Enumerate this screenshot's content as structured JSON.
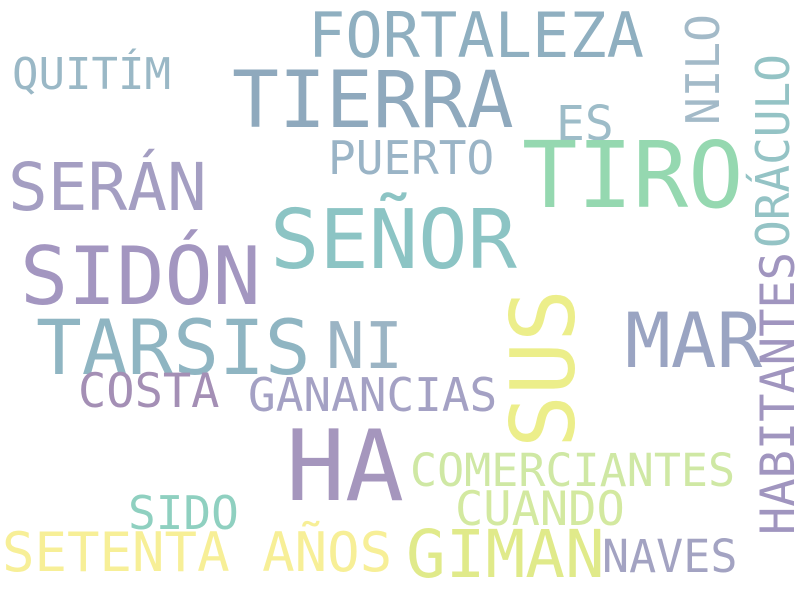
{
  "words": [
    {
      "text": "FORTALEZA",
      "color": "#8fafc0"
    },
    {
      "text": "NILO",
      "color": "#a3bac8"
    },
    {
      "text": "QUITÍM",
      "color": "#9ab8c6"
    },
    {
      "text": "TIERRA",
      "color": "#8fa9bd"
    },
    {
      "text": "ES",
      "color": "#9dbcc8"
    },
    {
      "text": "ORÁCULO",
      "color": "#94c3c5"
    },
    {
      "text": "PUERTO",
      "color": "#9ab4c6"
    },
    {
      "text": "TIRO",
      "color": "#95d8b0"
    },
    {
      "text": "SERÁN",
      "color": "#a49ec2"
    },
    {
      "text": "SEÑOR",
      "color": "#8cc4c4"
    },
    {
      "text": "SIDÓN",
      "color": "#a396c0"
    },
    {
      "text": "HABITANTES",
      "color": "#a095bf"
    },
    {
      "text": "SUS",
      "color": "#ecee8a"
    },
    {
      "text": "MAR",
      "color": "#9aa4c2"
    },
    {
      "text": "TARSIS",
      "color": "#8fb5c2"
    },
    {
      "text": "NI",
      "color": "#9bb4c4"
    },
    {
      "text": "COSTA",
      "color": "#a48fb5"
    },
    {
      "text": "GANANCIAS",
      "color": "#a4a1c4"
    },
    {
      "text": "HA",
      "color": "#a596bd"
    },
    {
      "text": "COMERCIANTES",
      "color": "#cfe8a4"
    },
    {
      "text": "SIDO",
      "color": "#8fd0c0"
    },
    {
      "text": "CUANDO",
      "color": "#d3e9a0"
    },
    {
      "text": "SETENTA AÑOS",
      "color": "#f7ef97"
    },
    {
      "text": "GIMAN",
      "color": "#e0ea8a"
    },
    {
      "text": "NAVES",
      "color": "#a3a3c2"
    }
  ]
}
